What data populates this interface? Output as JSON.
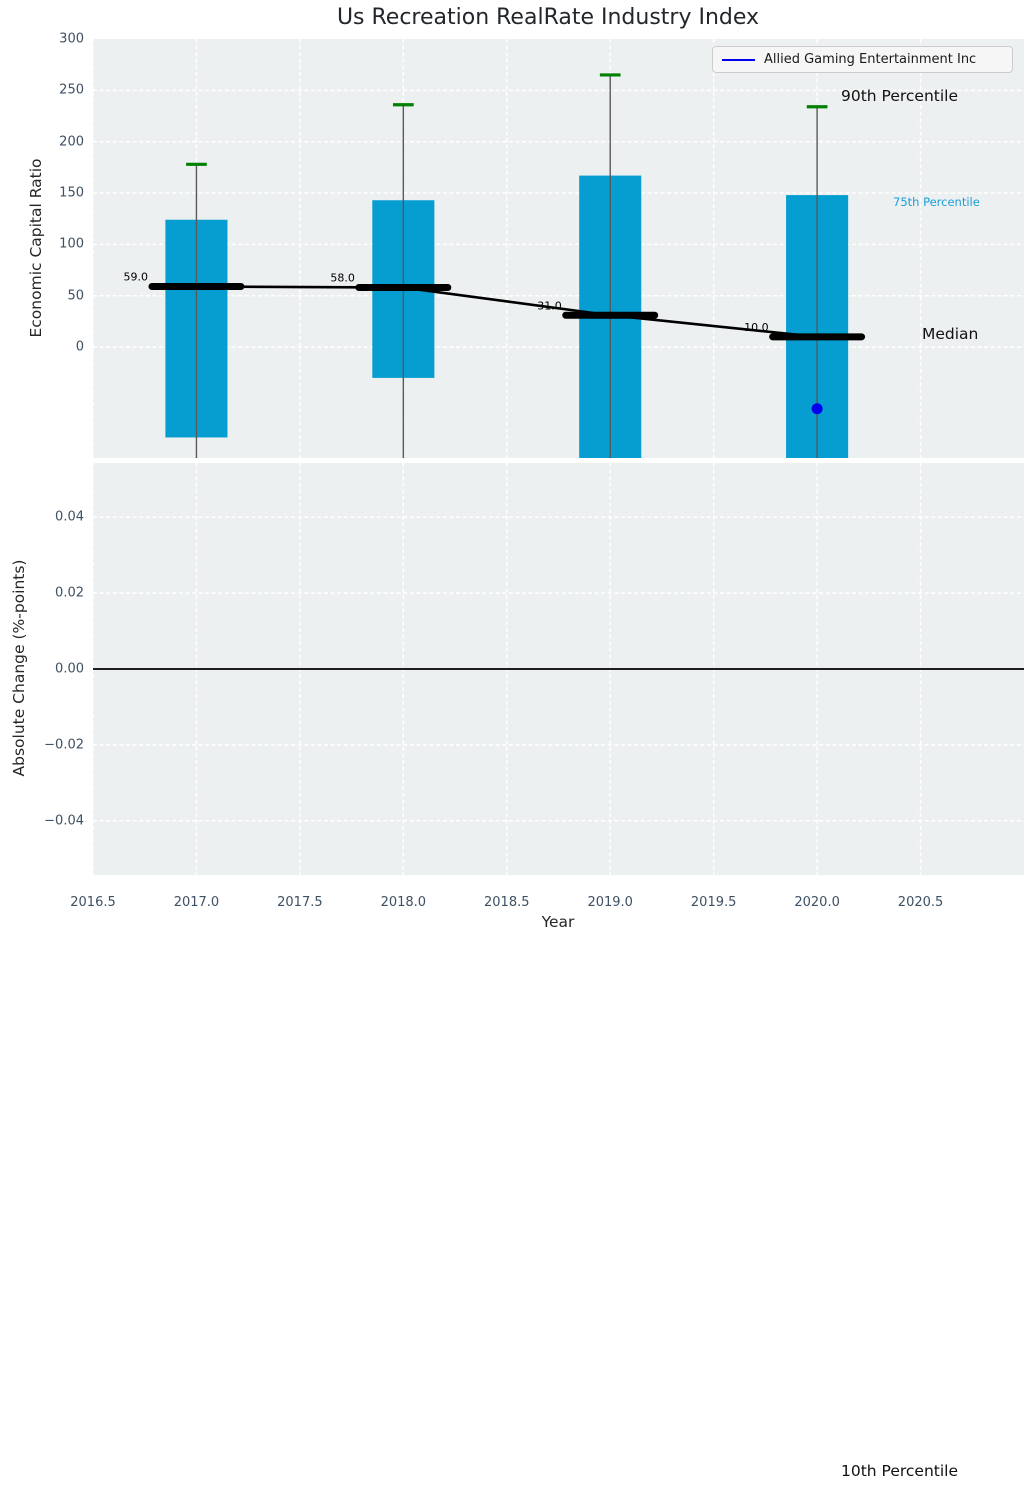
{
  "title": "Us Recreation RealRate Industry Index",
  "legend": {
    "label": "Allied Gaming Entertainment Inc"
  },
  "annotations": {
    "p90_label": "90th Percentile",
    "p75_label": "75th Percentile",
    "median_label": "Median",
    "p10_label": "10th Percentile"
  },
  "axes": {
    "x_label": "Year",
    "x_tick_labels": [
      "2016.5",
      "2017.0",
      "2017.5",
      "2018.0",
      "2018.5",
      "2019.0",
      "2019.5",
      "2020.0",
      "2020.5"
    ],
    "x_tick_values": [
      2016.5,
      2017,
      2017.5,
      2018,
      2018.5,
      2019,
      2019.5,
      2020,
      2020.5
    ],
    "top_y_label": "Economic Capital Ratio",
    "top_y_tick_labels": [
      "300",
      "250",
      "200",
      "150",
      "100",
      "50",
      "0"
    ],
    "top_y_tick_values": [
      300,
      250,
      200,
      150,
      100,
      50,
      0
    ],
    "bottom_y_label": "Absolute Change (%-points)",
    "bottom_y_tick_labels": [
      "0.04",
      "0.02",
      "0.00",
      "−0.02",
      "−0.04"
    ],
    "bottom_y_tick_values": [
      0.04,
      0.02,
      0,
      -0.02,
      -0.04
    ]
  },
  "colors": {
    "bar": "#069dd1",
    "percentile_cap": "#008000",
    "company": "#0000ee",
    "plot_background": "#ecf0f1",
    "grid": "#ffffff",
    "tick_label": "#3d5064",
    "median_line": "#000000",
    "whisker": "#595959",
    "p75_annotation": "#1b9fd6"
  },
  "chart_data": [
    {
      "type": "bar",
      "title": "Us Recreation RealRate Industry Index",
      "xlabel": "Year",
      "ylabel": "Economic Capital Ratio",
      "xlim": [
        2016.5,
        2021.0
      ],
      "ylim": [
        -108,
        300
      ],
      "grid": "white dashed, on",
      "legend_position": "upper right",
      "bar_width_years": 0.3,
      "cap_width_years": 0.1,
      "median_seg_width_years": 0.43,
      "bars": [
        {
          "year": 2017,
          "median": 59.0,
          "median_label": "59.0",
          "p75": 124,
          "p25": -88,
          "p25_clipped": false,
          "p90": 178
        },
        {
          "year": 2018,
          "median": 58.0,
          "median_label": "58.0",
          "p75": 143,
          "p25": -30,
          "p25_clipped": false,
          "p90": 236
        },
        {
          "year": 2019,
          "median": 31.0,
          "median_label": "31.0",
          "p75": 167,
          "p25": -108,
          "p25_clipped": true,
          "p90": 265
        },
        {
          "year": 2020,
          "median": 10.0,
          "median_label": "10.0",
          "p75": 148,
          "p25": -108,
          "p25_clipped": true,
          "p90": 234
        }
      ],
      "series": [
        {
          "name": "Allied Gaming Entertainment Inc",
          "type": "scatter",
          "color": "#0000ee",
          "points": [
            {
              "x": 2020,
              "y": -60
            }
          ]
        }
      ]
    },
    {
      "type": "line",
      "ylabel": "Absolute Change (%-points)",
      "xlim": [
        2016.5,
        2021.0
      ],
      "ylim": [
        -0.0543,
        0.0543
      ],
      "zero_line": true,
      "grid": "white dashed, on",
      "series": []
    }
  ]
}
